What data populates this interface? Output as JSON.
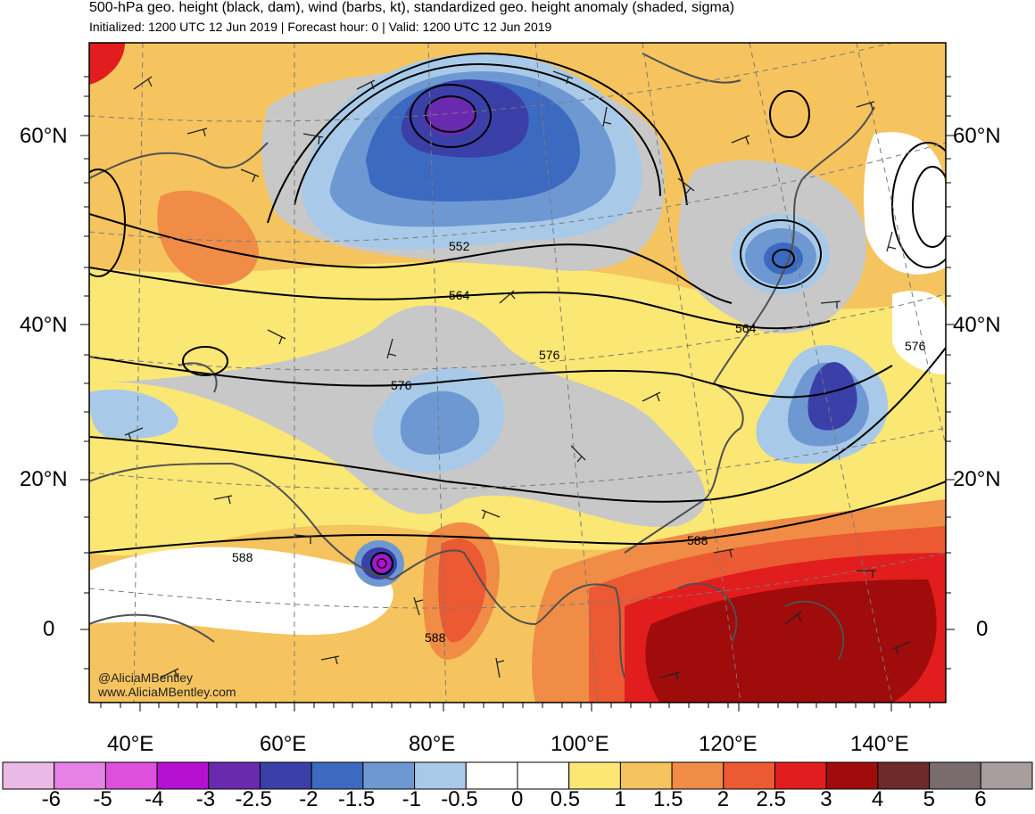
{
  "header": {
    "title": "500-hPa geo. height (black, dam), wind (barbs, kt), standardized geo. height anomaly (shaded, sigma)",
    "subtitle": "Initialized: 1200 UTC 12 Jun 2019 | Forecast hour: 0 | Valid: 1200 UTC 12 Jun 2019"
  },
  "map": {
    "lat_labels": [
      "60°N",
      "40°N",
      "20°N",
      "0"
    ],
    "lon_labels": [
      "40°E",
      "60°E",
      "80°E",
      "100°E",
      "120°E",
      "140°E"
    ],
    "contour_labels": [
      "552",
      "564",
      "564",
      "576",
      "576",
      "576",
      "588",
      "588",
      "588"
    ],
    "credits": [
      "@AliciaMBentley",
      "www.AliciaMBentley.com"
    ]
  },
  "colorbar": {
    "labels": [
      "-6",
      "-5",
      "-4",
      "-3",
      "-2.5",
      "-2",
      "-1.5",
      "-1",
      "-0.5",
      "0",
      "0.5",
      "1",
      "1.5",
      "2",
      "2.5",
      "3",
      "4",
      "5",
      "6"
    ],
    "colors": [
      "#ebb9e6",
      "#e682e6",
      "#dc50dc",
      "#b410d2",
      "#6a2ab0",
      "#3b3fa8",
      "#3c6ac0",
      "#6e98d2",
      "#a8cae8",
      "#ffffff",
      "#ffffff",
      "#fbe774",
      "#f5c45e",
      "#f08c46",
      "#eb5a32",
      "#e21d1d",
      "#a00b0b",
      "#6e2a2a",
      "#786c6c",
      "#a89e9e"
    ]
  }
}
